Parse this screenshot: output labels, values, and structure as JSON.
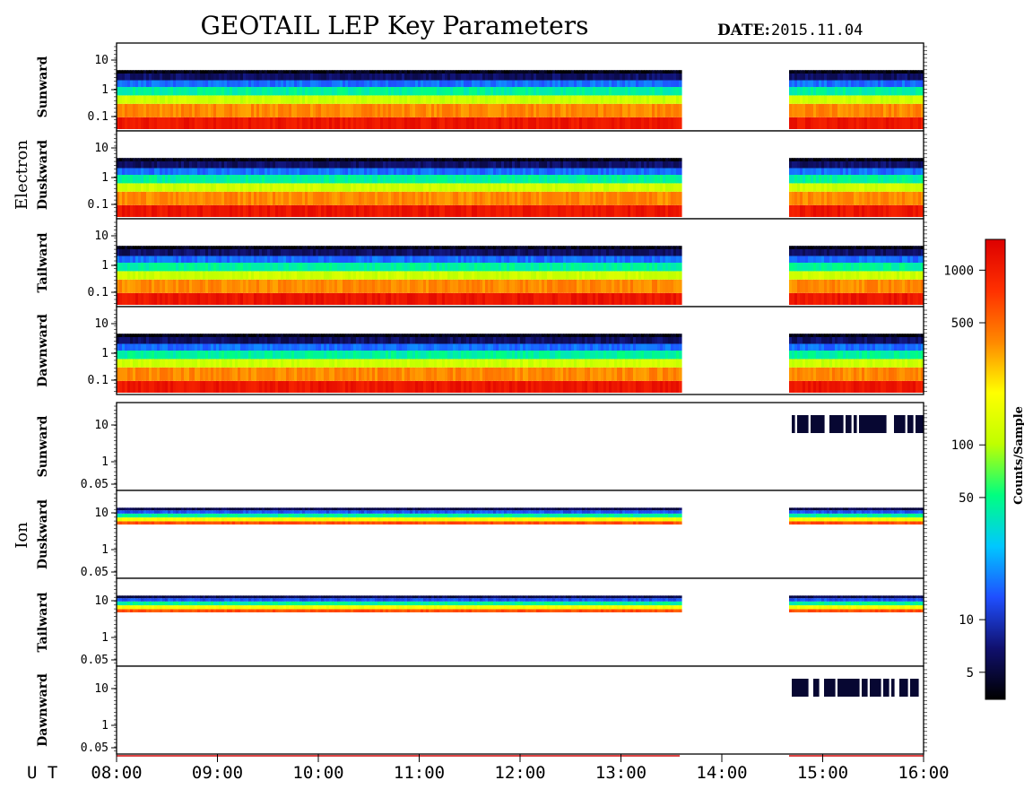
{
  "title": "GEOTAIL LEP Key Parameters",
  "date_label": "DATE:",
  "date_value": "2015.11.04",
  "time_label": "U T",
  "groups": [
    "Electron",
    "Ion"
  ],
  "colorbar": {
    "title": "Counts/Sample",
    "ticks": [
      "1000",
      "500",
      "100",
      "50",
      "10",
      "5"
    ],
    "scale": "log",
    "range": [
      3.5,
      1500
    ],
    "tick_values": [
      1000,
      500,
      100,
      50,
      10,
      5
    ],
    "colors": [
      "#000000",
      "#10106e",
      "#1f4fff",
      "#00c8ff",
      "#00ff80",
      "#c0ff00",
      "#ffff00",
      "#ff8800",
      "#ff3000",
      "#dd0000"
    ]
  },
  "chart_data": {
    "type": "heatmap",
    "x_range": [
      "08:00",
      "16:00"
    ],
    "x_ticks": [
      "08:00",
      "09:00",
      "10:00",
      "11:00",
      "12:00",
      "13:00",
      "14:00",
      "15:00",
      "16:00"
    ],
    "data_gap": [
      "13:35",
      "14:40"
    ],
    "panels": [
      {
        "group": "Electron",
        "name": "Sunward",
        "yticks": [
          "10",
          "1",
          "0.1"
        ],
        "yscale": "log"
      },
      {
        "group": "Electron",
        "name": "Duskward",
        "yticks": [
          "10",
          "1",
          "0.1"
        ],
        "yscale": "log"
      },
      {
        "group": "Electron",
        "name": "Tailward",
        "yticks": [
          "10",
          "1",
          "0.1"
        ],
        "yscale": "log"
      },
      {
        "group": "Electron",
        "name": "Dawnward",
        "yticks": [
          "10",
          "1",
          "0.1"
        ],
        "yscale": "log"
      },
      {
        "group": "Ion",
        "name": "Sunward",
        "yticks": [
          "10",
          "1",
          "0.05"
        ],
        "yscale": "log"
      },
      {
        "group": "Ion",
        "name": "Duskward",
        "yticks": [
          "10",
          "1",
          "0.05"
        ],
        "yscale": "log"
      },
      {
        "group": "Ion",
        "name": "Tailward",
        "yticks": [
          "10",
          "1",
          "0.05"
        ],
        "yscale": "log"
      },
      {
        "group": "Ion",
        "name": "Dawnward",
        "yticks": [
          "10",
          "1",
          "0.05"
        ],
        "yscale": "log"
      }
    ]
  }
}
